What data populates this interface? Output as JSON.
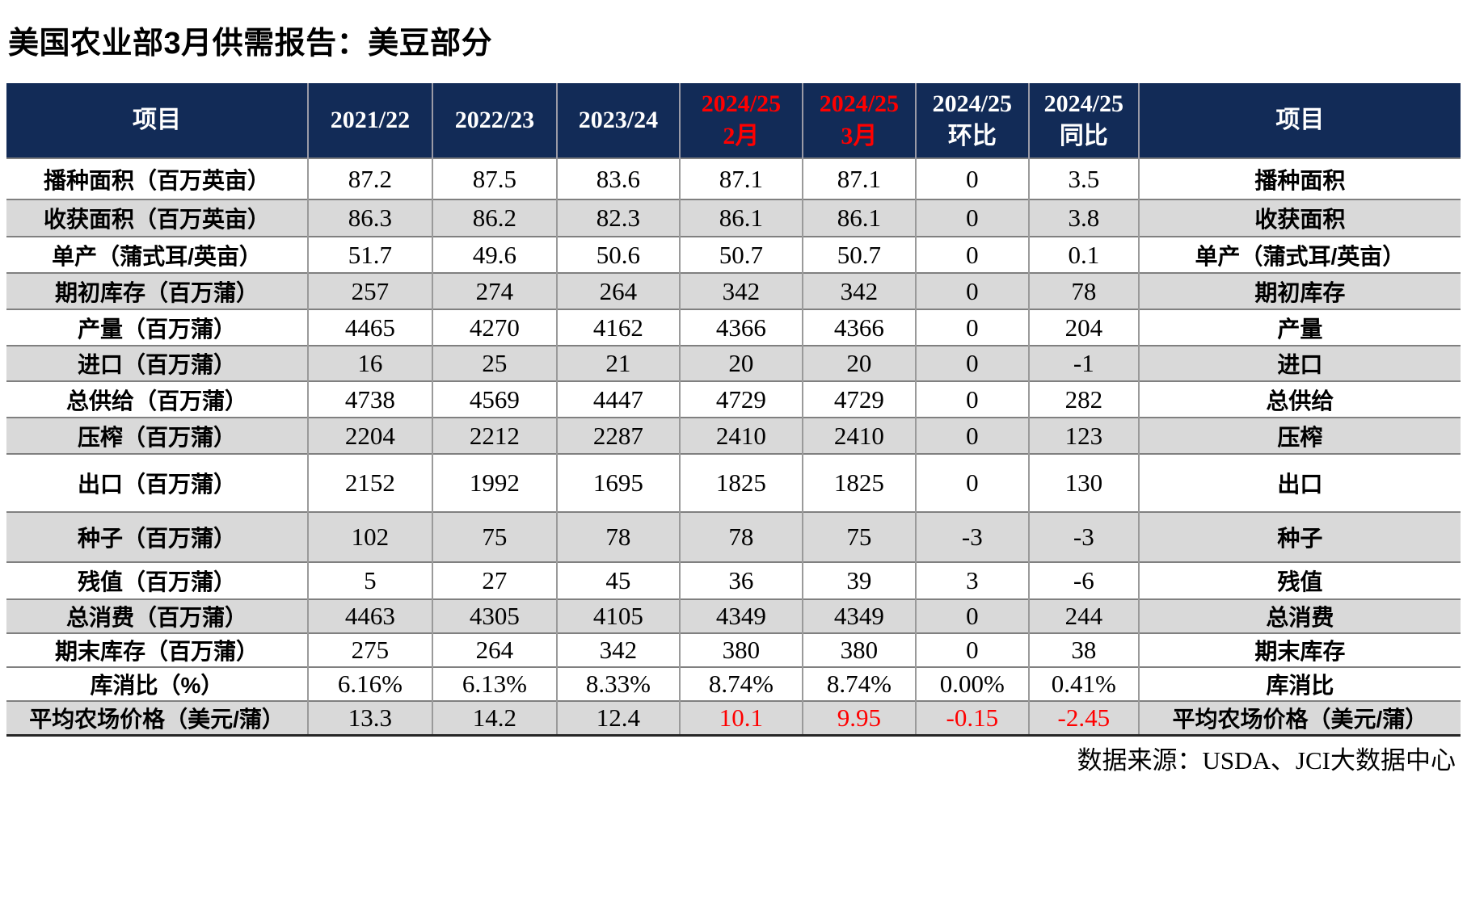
{
  "title": "美国农业部3月供需报告：美豆部分",
  "source_note": "数据来源：USDA、JCI大数据中心",
  "colors": {
    "header_bg": "#122B57",
    "header_text": "#FFFFFF",
    "highlight_red": "#FF0000",
    "row_shade": "#D9D9D9",
    "grid_line": "#8C8C8C"
  },
  "table": {
    "columns": [
      {
        "label": "项目",
        "red": false
      },
      {
        "label": "2021/22",
        "red": false
      },
      {
        "label": "2022/23",
        "red": false
      },
      {
        "label": "2023/24",
        "red": false
      },
      {
        "label": "2024/25\n2月",
        "red": true
      },
      {
        "label": "2024/25\n3月",
        "red": true
      },
      {
        "label": "2024/25\n环比",
        "red": false
      },
      {
        "label": "2024/25\n同比",
        "red": false
      },
      {
        "label": "项目",
        "red": false
      }
    ],
    "rows": [
      {
        "item_left": "播种面积（百万英亩）",
        "values": [
          "87.2",
          "87.5",
          "83.6",
          "87.1",
          "87.1",
          "0",
          "3.5"
        ],
        "item_right": "播种面积",
        "shade": false,
        "red_value_cols": []
      },
      {
        "item_left": "收获面积（百万英亩）",
        "values": [
          "86.3",
          "86.2",
          "82.3",
          "86.1",
          "86.1",
          "0",
          "3.8"
        ],
        "item_right": "收获面积",
        "shade": true,
        "red_value_cols": []
      },
      {
        "item_left": "单产（蒲式耳/英亩）",
        "values": [
          "51.7",
          "49.6",
          "50.6",
          "50.7",
          "50.7",
          "0",
          "0.1"
        ],
        "item_right": "单产（蒲式耳/英亩）",
        "shade": false,
        "red_value_cols": []
      },
      {
        "item_left": "期初库存（百万蒲）",
        "values": [
          "257",
          "274",
          "264",
          "342",
          "342",
          "0",
          "78"
        ],
        "item_right": "期初库存",
        "shade": true,
        "red_value_cols": []
      },
      {
        "item_left": "产量（百万蒲）",
        "values": [
          "4465",
          "4270",
          "4162",
          "4366",
          "4366",
          "0",
          "204"
        ],
        "item_right": "产量",
        "shade": false,
        "red_value_cols": []
      },
      {
        "item_left": "进口（百万蒲）",
        "values": [
          "16",
          "25",
          "21",
          "20",
          "20",
          "0",
          "-1"
        ],
        "item_right": "进口",
        "shade": true,
        "red_value_cols": []
      },
      {
        "item_left": "总供给（百万蒲）",
        "values": [
          "4738",
          "4569",
          "4447",
          "4729",
          "4729",
          "0",
          "282"
        ],
        "item_right": "总供给",
        "shade": false,
        "red_value_cols": []
      },
      {
        "item_left": "压榨（百万蒲）",
        "values": [
          "2204",
          "2212",
          "2287",
          "2410",
          "2410",
          "0",
          "123"
        ],
        "item_right": "压榨",
        "shade": true,
        "red_value_cols": []
      },
      {
        "item_left": "出口（百万蒲）",
        "values": [
          "2152",
          "1992",
          "1695",
          "1825",
          "1825",
          "0",
          "130"
        ],
        "item_right": "出口",
        "shade": false,
        "red_value_cols": []
      },
      {
        "item_left": "种子（百万蒲）",
        "values": [
          "102",
          "75",
          "78",
          "78",
          "75",
          "-3",
          "-3"
        ],
        "item_right": "种子",
        "shade": true,
        "red_value_cols": []
      },
      {
        "item_left": "残值（百万蒲）",
        "values": [
          "5",
          "27",
          "45",
          "36",
          "39",
          "3",
          "-6"
        ],
        "item_right": "残值",
        "shade": false,
        "red_value_cols": []
      },
      {
        "item_left": "总消费（百万蒲）",
        "values": [
          "4463",
          "4305",
          "4105",
          "4349",
          "4349",
          "0",
          "244"
        ],
        "item_right": "总消费",
        "shade": true,
        "red_value_cols": []
      },
      {
        "item_left": "期末库存（百万蒲）",
        "values": [
          "275",
          "264",
          "342",
          "380",
          "380",
          "0",
          "38"
        ],
        "item_right": "期末库存",
        "shade": false,
        "red_value_cols": []
      },
      {
        "item_left": "库消比（%）",
        "values": [
          "6.16%",
          "6.13%",
          "8.33%",
          "8.74%",
          "8.74%",
          "0.00%",
          "0.41%"
        ],
        "item_right": "库消比",
        "shade": false,
        "red_value_cols": []
      },
      {
        "item_left": "平均农场价格（美元/蒲）",
        "values": [
          "13.3",
          "14.2",
          "12.4",
          "10.1",
          "9.95",
          "-0.15",
          "-2.45"
        ],
        "item_right": "平均农场价格（美元/蒲）",
        "shade": true,
        "red_value_cols": [
          3,
          4,
          5,
          6
        ]
      }
    ]
  }
}
